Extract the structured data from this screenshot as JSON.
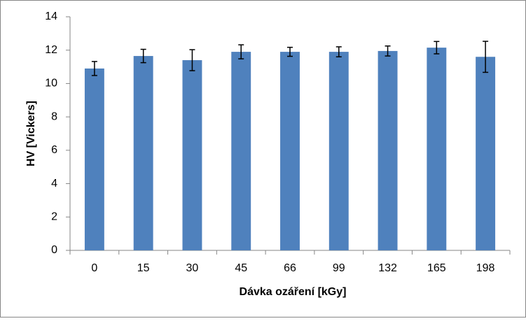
{
  "chart_data": {
    "type": "bar",
    "x_label": "Dávka ozáření [kGy]",
    "y_label": "HV [Vickers]",
    "categories": [
      "0",
      "15",
      "30",
      "45",
      "66",
      "99",
      "132",
      "165",
      "198"
    ],
    "series": [
      {
        "color": "#4f81bd",
        "values": [
          10.9,
          11.65,
          11.4,
          11.9,
          11.9,
          11.9,
          11.95,
          12.15,
          11.6
        ],
        "errors": [
          0.42,
          0.4,
          0.63,
          0.42,
          0.27,
          0.3,
          0.3,
          0.37,
          0.93
        ]
      }
    ],
    "ylim": [
      0,
      14
    ],
    "yticks": [
      0,
      2,
      4,
      6,
      8,
      10,
      12,
      14
    ],
    "grid": false
  }
}
